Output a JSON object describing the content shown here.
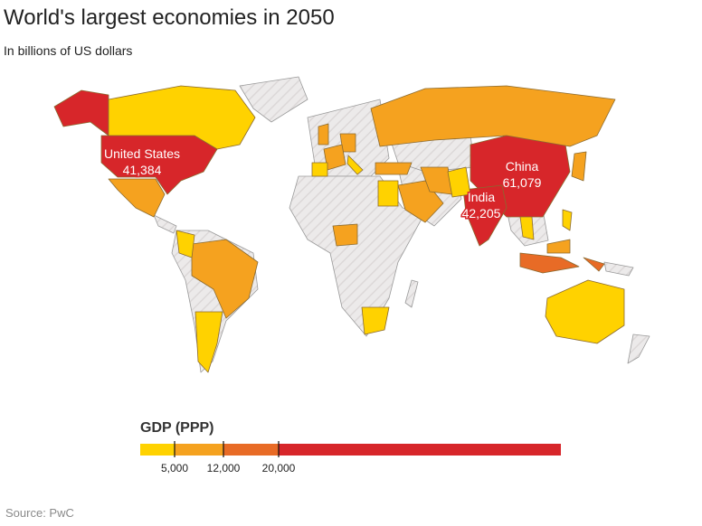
{
  "title": "World's largest economies in 2050",
  "subtitle": "In billions of US dollars",
  "source": "Source: PwC",
  "legend": {
    "title": "GDP (PPP)",
    "thresholds": [
      "5,000",
      "12,000",
      "20,000"
    ],
    "colors": [
      "#FFD200",
      "#F5A21F",
      "#E86B26",
      "#D7262A"
    ],
    "no_data_color": "#E8E6E6"
  },
  "labels": [
    {
      "country": "United States",
      "name": "United States",
      "value": "41,384"
    },
    {
      "country": "China",
      "name": "China",
      "value": "61,079"
    },
    {
      "country": "India",
      "name": "India",
      "value": "42,205"
    }
  ],
  "countries": [
    {
      "name": "United States",
      "tier": 3
    },
    {
      "name": "China",
      "tier": 3
    },
    {
      "name": "India",
      "tier": 3
    },
    {
      "name": "Indonesia",
      "tier": 2
    },
    {
      "name": "Brazil",
      "tier": 1
    },
    {
      "name": "Russia",
      "tier": 1
    },
    {
      "name": "Japan",
      "tier": 1
    },
    {
      "name": "Germany",
      "tier": 1
    },
    {
      "name": "United Kingdom",
      "tier": 1
    },
    {
      "name": "France",
      "tier": 1
    },
    {
      "name": "Mexico",
      "tier": 1
    },
    {
      "name": "Saudi Arabia",
      "tier": 1
    },
    {
      "name": "Turkey",
      "tier": 1
    },
    {
      "name": "Nigeria",
      "tier": 1
    },
    {
      "name": "Iran",
      "tier": 1
    },
    {
      "name": "Malaysia",
      "tier": 1
    },
    {
      "name": "Canada",
      "tier": 0
    },
    {
      "name": "Australia",
      "tier": 0
    },
    {
      "name": "Argentina",
      "tier": 0
    },
    {
      "name": "Colombia",
      "tier": 0
    },
    {
      "name": "South Africa",
      "tier": 0
    },
    {
      "name": "Egypt",
      "tier": 0
    },
    {
      "name": "Pakistan",
      "tier": 0
    },
    {
      "name": "Italy",
      "tier": 0
    },
    {
      "name": "Spain",
      "tier": 0
    },
    {
      "name": "Thailand",
      "tier": 0
    },
    {
      "name": "Philippines",
      "tier": 0
    }
  ]
}
